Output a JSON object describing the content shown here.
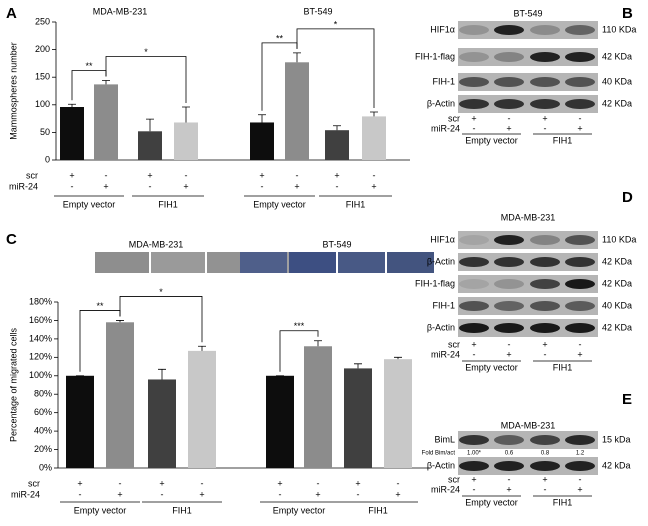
{
  "chart_data": [
    {
      "type": "bar",
      "panel": "A",
      "ylabel": "Mammospheres number",
      "ylim": [
        0,
        250
      ],
      "yticks": [
        0,
        50,
        100,
        150,
        200,
        250
      ],
      "colors": [
        "#0d0d0d",
        "#8c8c8c",
        "#404040",
        "#c8c8c8"
      ],
      "groups": [
        {
          "title": "MDA-MB-231",
          "values": [
            96,
            137,
            52,
            68
          ],
          "errors": [
            5,
            7,
            22,
            28
          ],
          "significance": [
            {
              "label": "**",
              "bars": [
                0,
                1
              ]
            },
            {
              "label": "*",
              "bars": [
                1,
                3
              ]
            }
          ]
        },
        {
          "title": "BT-549",
          "values": [
            68,
            177,
            54,
            79
          ],
          "errors": [
            14,
            17,
            8,
            8
          ],
          "significance": [
            {
              "label": "**",
              "bars": [
                0,
                1
              ]
            },
            {
              "label": "*",
              "bars": [
                1,
                3
              ]
            }
          ]
        }
      ],
      "rows": [
        {
          "label": "scr",
          "signs": [
            "+",
            "-",
            "+",
            "-"
          ]
        },
        {
          "label": "miR-24",
          "signs": [
            "-",
            "+",
            "-",
            "+"
          ]
        }
      ],
      "group_labels": [
        "Empty vector",
        "FIH1"
      ]
    },
    {
      "type": "bar",
      "panel": "C",
      "ylabel": "Percentage of migrated cells",
      "ylim": [
        0,
        180
      ],
      "yticks": [
        {
          "value": 0,
          "label": "0%"
        },
        {
          "value": 20,
          "label": "20%"
        },
        {
          "value": 40,
          "label": "40%"
        },
        {
          "value": 60,
          "label": "60%"
        },
        {
          "value": 80,
          "label": "80%"
        },
        {
          "value": 100,
          "label": "100%"
        },
        {
          "value": 120,
          "label": "120%"
        },
        {
          "value": 140,
          "label": "140%"
        },
        {
          "value": 160,
          "label": "160%"
        },
        {
          "value": 180,
          "label": "180%"
        }
      ],
      "colors": [
        "#0d0d0d",
        "#8c8c8c",
        "#404040",
        "#c8c8c8"
      ],
      "groups": [
        {
          "title": "MDA-MB-231",
          "values": [
            100,
            158,
            96,
            127
          ],
          "errors": [
            0,
            2,
            11,
            5
          ],
          "significance": [
            {
              "label": "**",
              "bars": [
                0,
                1
              ]
            },
            {
              "label": "*",
              "bars": [
                1,
                3
              ]
            }
          ]
        },
        {
          "title": "BT-549",
          "values": [
            100,
            132,
            108,
            118
          ],
          "errors": [
            0,
            6,
            5,
            2
          ],
          "significance": [
            {
              "label": "***",
              "bars": [
                0,
                1
              ]
            }
          ]
        }
      ],
      "rows": [
        {
          "label": "scr",
          "signs": [
            "+",
            "-",
            "+",
            "-"
          ]
        },
        {
          "label": "miR-24",
          "signs": [
            "-",
            "+",
            "-",
            "+"
          ]
        }
      ],
      "group_labels": [
        "Empty vector",
        "FIH1"
      ]
    }
  ],
  "blots": [
    {
      "panel": "B",
      "title": "BT-549",
      "bands": [
        {
          "label": "HIF1α",
          "size": "110 KDa"
        },
        {
          "label": "FIH-1-flag",
          "size": "42 KDa"
        },
        {
          "label": "FIH-1",
          "size": "40 KDa"
        },
        {
          "label": "β-Actin",
          "size": "42 KDa"
        }
      ],
      "rows": [
        {
          "label": "scr",
          "signs": [
            "+",
            "-",
            "+",
            "-"
          ]
        },
        {
          "label": "miR-24",
          "signs": [
            "-",
            "+",
            "-",
            "+"
          ]
        }
      ],
      "group_labels": [
        "Empty vector",
        "FIH1"
      ]
    },
    {
      "panel": "D",
      "title": "MDA-MB-231",
      "bands": [
        {
          "label": "HIF1α",
          "size": "110 KDa"
        },
        {
          "label": "β-Actin",
          "size": "42 KDa"
        },
        {
          "label": "FIH-1-flag",
          "size": "42 KDa"
        },
        {
          "label": "FIH-1",
          "size": "40 KDa"
        },
        {
          "label": "β-Actin",
          "size": "42 KDa"
        }
      ],
      "rows": [
        {
          "label": "scr",
          "signs": [
            "+",
            "-",
            "+",
            "-"
          ]
        },
        {
          "label": "miR-24",
          "signs": [
            "-",
            "+",
            "-",
            "+"
          ]
        }
      ],
      "group_labels": [
        "Empty vector",
        "FIH1"
      ]
    },
    {
      "panel": "E",
      "title": "MDA-MB-231",
      "bands": [
        {
          "label": "BimL",
          "size": "15 kDa"
        },
        {
          "label": "β-Actin",
          "size": "42 kDa"
        }
      ],
      "fold": {
        "label": "Fold Bim/act",
        "values": [
          "1.00*",
          "0.6",
          "0.8",
          "1.2"
        ]
      },
      "rows": [
        {
          "label": "scr",
          "signs": [
            "+",
            "-",
            "+",
            "-"
          ]
        },
        {
          "label": "miR-24",
          "signs": [
            "-",
            "+",
            "-",
            "+"
          ]
        }
      ],
      "group_labels": [
        "Empty vector",
        "FIH1"
      ]
    }
  ]
}
